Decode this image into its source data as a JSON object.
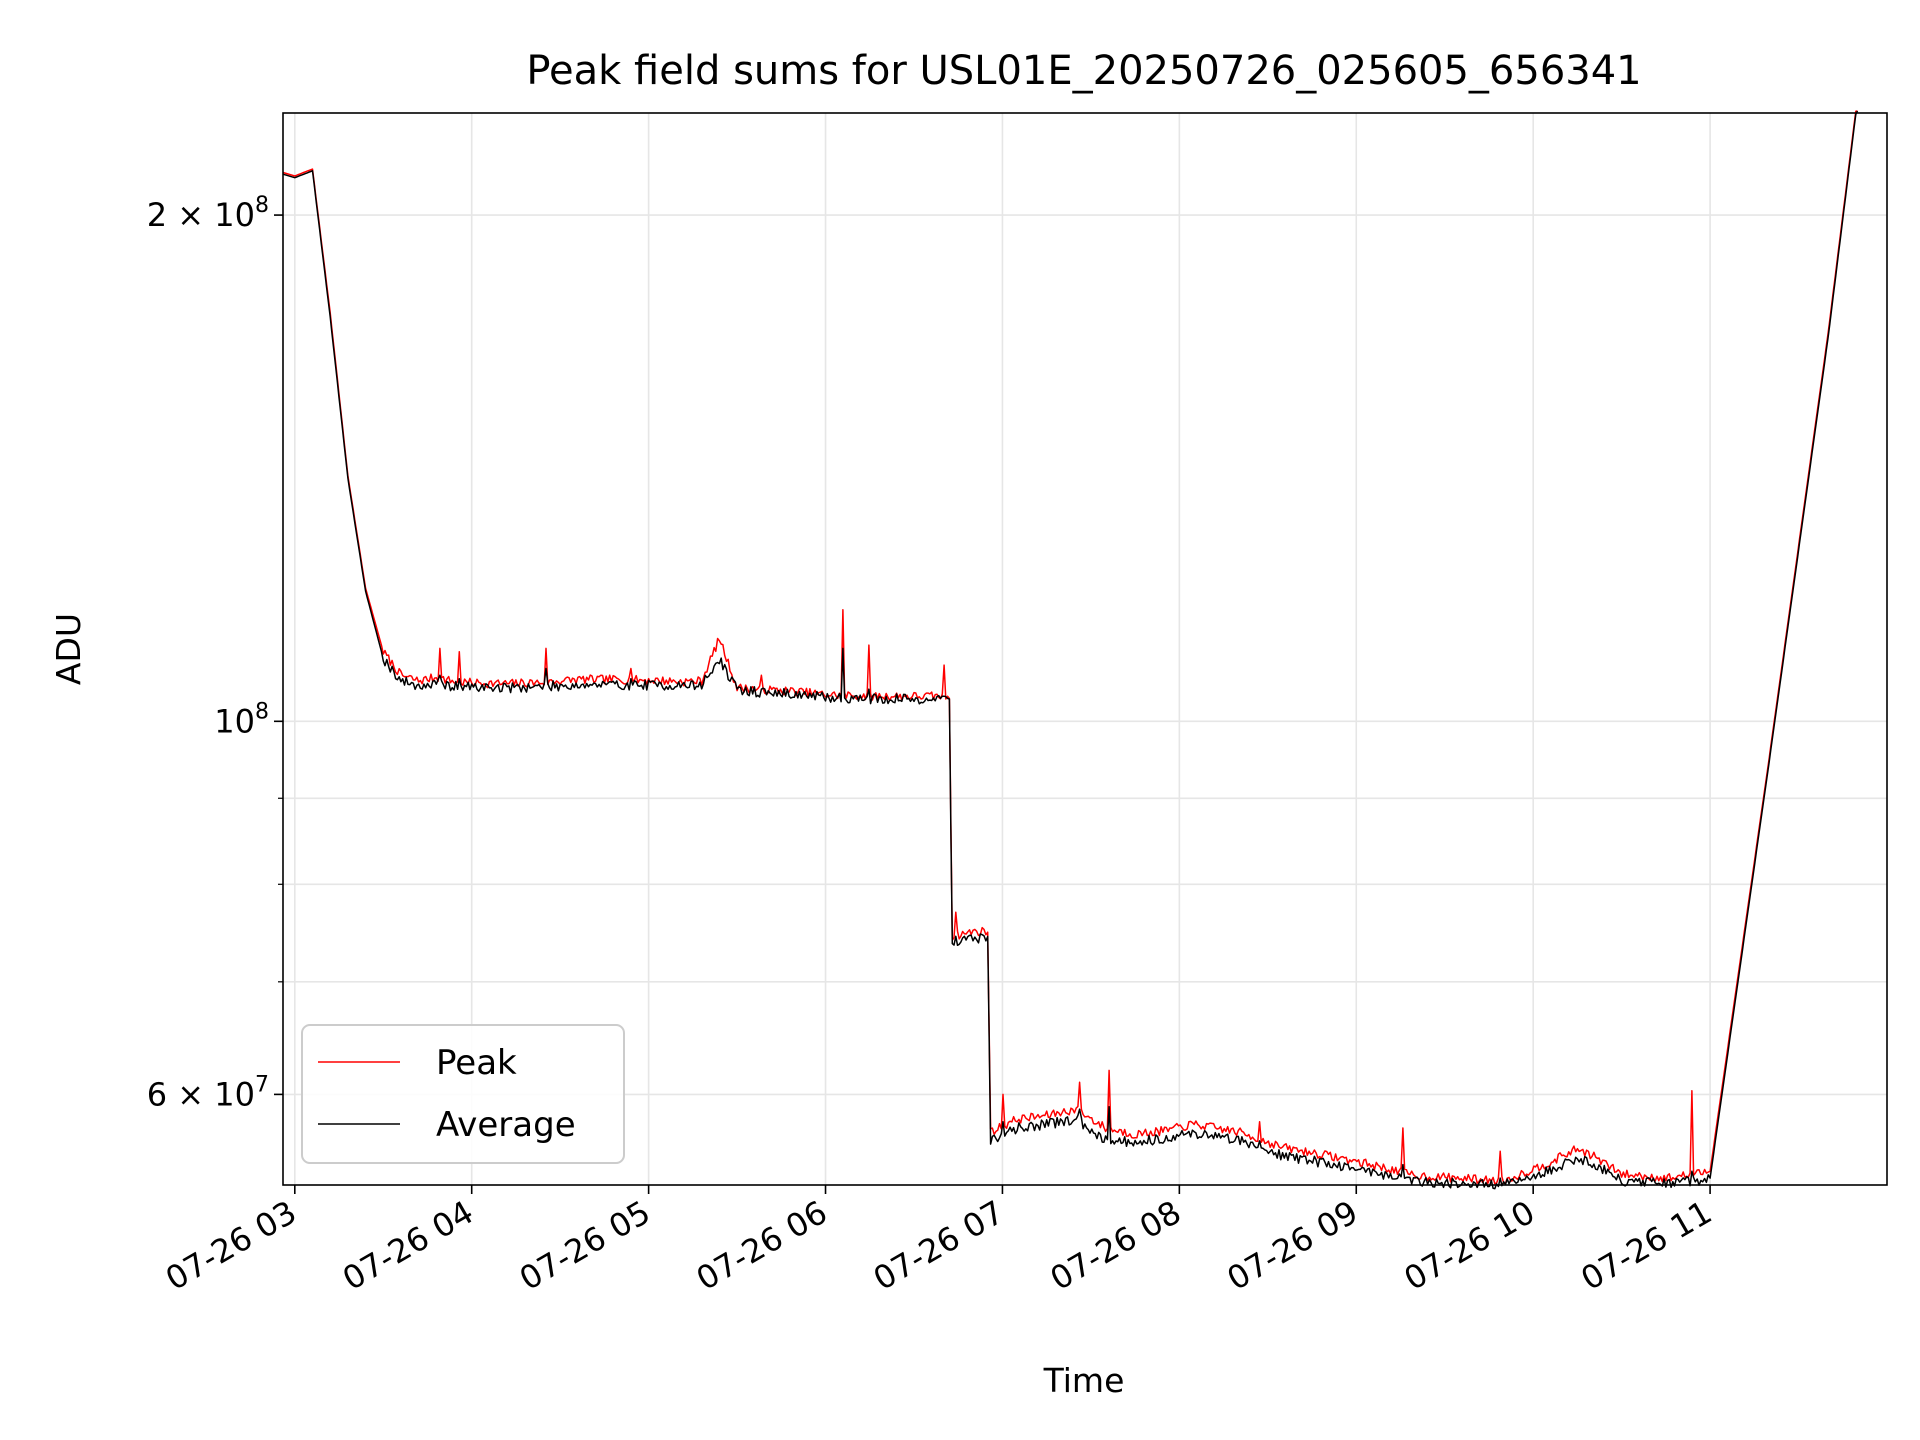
{
  "chart_data": {
    "type": "line",
    "title": "Peak field sums for USL01E_20250726_025605_656341",
    "xlabel": "Time",
    "ylabel": "ADU",
    "y_scale": "log",
    "xlim": [
      "2025-07-26 02:56",
      "2025-07-26 12:00"
    ],
    "ylim": [
      53000000,
      230000000
    ],
    "grid": true,
    "legend_position": "lower left",
    "x_ticks": [
      {
        "value": "2025-07-26 03:00",
        "label": "07-26 03"
      },
      {
        "value": "2025-07-26 04:00",
        "label": "07-26 04"
      },
      {
        "value": "2025-07-26 05:00",
        "label": "07-26 05"
      },
      {
        "value": "2025-07-26 06:00",
        "label": "07-26 06"
      },
      {
        "value": "2025-07-26 07:00",
        "label": "07-26 07"
      },
      {
        "value": "2025-07-26 08:00",
        "label": "07-26 08"
      },
      {
        "value": "2025-07-26 09:00",
        "label": "07-26 09"
      },
      {
        "value": "2025-07-26 10:00",
        "label": "07-26 10"
      },
      {
        "value": "2025-07-26 11:00",
        "label": "07-26 11"
      }
    ],
    "y_ticks": [
      {
        "value": 60000000,
        "base": "6 × 10",
        "exp": "7"
      },
      {
        "value": 100000000,
        "base": "10",
        "exp": "8"
      },
      {
        "value": 200000000,
        "base": "2 × 10",
        "exp": "8"
      }
    ],
    "y_minor_ticks": [
      70000000,
      80000000,
      90000000
    ],
    "series": [
      {
        "name": "Peak",
        "color": "#ff0000",
        "points": [
          [
            "02:56",
            212000000
          ],
          [
            "03:00",
            211000000
          ],
          [
            "03:06",
            213000000
          ],
          [
            "03:12",
            175000000
          ],
          [
            "03:18",
            140000000
          ],
          [
            "03:24",
            120000000
          ],
          [
            "03:30",
            110000000
          ],
          [
            "03:36",
            106500000
          ],
          [
            "03:42",
            105700000
          ],
          [
            "03:48",
            106200000
          ],
          [
            "03:54",
            105600000
          ],
          [
            "04:00",
            105400000
          ],
          [
            "04:12",
            105300000
          ],
          [
            "04:24",
            105500000
          ],
          [
            "04:36",
            105900000
          ],
          [
            "04:48",
            105900000
          ],
          [
            "05:00",
            105800000
          ],
          [
            "05:12",
            105600000
          ],
          [
            "05:18",
            105700000
          ],
          [
            "05:24",
            112000000
          ],
          [
            "05:30",
            104700000
          ],
          [
            "05:40",
            104400000
          ],
          [
            "05:50",
            104200000
          ],
          [
            "06:00",
            103700000
          ],
          [
            "06:10",
            103600000
          ],
          [
            "06:20",
            103500000
          ],
          [
            "06:30",
            103500000
          ],
          [
            "06:42",
            103500000
          ],
          [
            "06:43",
            74500000
          ],
          [
            "06:50",
            75000000
          ],
          [
            "06:55",
            75000000
          ],
          [
            "06:56",
            57000000
          ],
          [
            "07:05",
            58000000
          ],
          [
            "07:15",
            58300000
          ],
          [
            "07:25",
            58800000
          ],
          [
            "07:35",
            57300000
          ],
          [
            "07:45",
            56800000
          ],
          [
            "07:55",
            57100000
          ],
          [
            "08:05",
            57600000
          ],
          [
            "08:20",
            57000000
          ],
          [
            "08:35",
            55800000
          ],
          [
            "08:50",
            55200000
          ],
          [
            "09:05",
            54500000
          ],
          [
            "09:20",
            53700000
          ],
          [
            "09:35",
            53500000
          ],
          [
            "09:50",
            53300000
          ],
          [
            "10:05",
            54600000
          ],
          [
            "10:15",
            55700000
          ],
          [
            "10:20",
            55200000
          ],
          [
            "10:30",
            53800000
          ],
          [
            "10:45",
            53500000
          ],
          [
            "10:55",
            53800000
          ],
          [
            "11:00",
            54000000
          ],
          [
            "11:20",
            95000000
          ],
          [
            "11:40",
            170000000
          ],
          [
            "11:50",
            235000000
          ]
        ]
      },
      {
        "name": "Average",
        "color": "#000000",
        "points": [
          [
            "02:56",
            211500000
          ],
          [
            "03:00",
            210500000
          ],
          [
            "03:06",
            212500000
          ],
          [
            "03:12",
            174000000
          ],
          [
            "03:18",
            139500000
          ],
          [
            "03:24",
            119500000
          ],
          [
            "03:30",
            109000000
          ],
          [
            "03:36",
            105700000
          ],
          [
            "03:42",
            105000000
          ],
          [
            "03:48",
            105200000
          ],
          [
            "03:54",
            104900000
          ],
          [
            "04:00",
            104800000
          ],
          [
            "04:12",
            104700000
          ],
          [
            "04:24",
            104900000
          ],
          [
            "04:36",
            105100000
          ],
          [
            "04:48",
            105100000
          ],
          [
            "05:00",
            105100000
          ],
          [
            "05:12",
            105000000
          ],
          [
            "05:18",
            105100000
          ],
          [
            "05:24",
            108800000
          ],
          [
            "05:30",
            104400000
          ],
          [
            "05:40",
            104000000
          ],
          [
            "05:50",
            103800000
          ],
          [
            "06:00",
            103300000
          ],
          [
            "06:10",
            103200000
          ],
          [
            "06:20",
            103100000
          ],
          [
            "06:30",
            103100000
          ],
          [
            "06:42",
            103100000
          ],
          [
            "06:43",
            73800000
          ],
          [
            "06:50",
            74300000
          ],
          [
            "06:55",
            74400000
          ],
          [
            "06:56",
            56300000
          ],
          [
            "07:05",
            57300000
          ],
          [
            "07:15",
            57600000
          ],
          [
            "07:25",
            58000000
          ],
          [
            "07:35",
            56400000
          ],
          [
            "07:45",
            56200000
          ],
          [
            "07:55",
            56500000
          ],
          [
            "08:05",
            56900000
          ],
          [
            "08:20",
            56400000
          ],
          [
            "08:35",
            55200000
          ],
          [
            "08:50",
            54600000
          ],
          [
            "09:05",
            54000000
          ],
          [
            "09:20",
            53300000
          ],
          [
            "09:35",
            53100000
          ],
          [
            "09:50",
            53000000
          ],
          [
            "10:05",
            54000000
          ],
          [
            "10:15",
            55000000
          ],
          [
            "10:20",
            54600000
          ],
          [
            "10:30",
            53300000
          ],
          [
            "10:45",
            53100000
          ],
          [
            "10:55",
            53300000
          ],
          [
            "11:00",
            53500000
          ],
          [
            "11:20",
            94500000
          ],
          [
            "11:40",
            169000000
          ],
          [
            "11:50",
            234000000
          ]
        ]
      }
    ],
    "spikes": [
      {
        "time": "03:49",
        "peak": 110500000,
        "avg": 106500000
      },
      {
        "time": "03:56",
        "peak": 110000000,
        "avg": 106000000
      },
      {
        "time": "04:25",
        "peak": 110500000,
        "avg": 107500000
      },
      {
        "time": "04:54",
        "peak": 107500000,
        "avg": 106000000
      },
      {
        "time": "05:38",
        "peak": 106500000,
        "avg": 104500000
      },
      {
        "time": "06:06",
        "peak": 116500000,
        "avg": 110500000
      },
      {
        "time": "06:15",
        "peak": 111000000,
        "avg": 104500000
      },
      {
        "time": "06:40",
        "peak": 108000000,
        "avg": 103500000
      },
      {
        "time": "06:44",
        "peak": 77000000,
        "avg": 74500000
      },
      {
        "time": "07:00",
        "peak": 60000000,
        "avg": 57800000
      },
      {
        "time": "07:26",
        "peak": 61000000,
        "avg": 58800000
      },
      {
        "time": "07:36",
        "peak": 62000000,
        "avg": 59000000
      },
      {
        "time": "08:27",
        "peak": 57800000,
        "avg": 56300000
      },
      {
        "time": "09:16",
        "peak": 57300000,
        "avg": 54500000
      },
      {
        "time": "09:49",
        "peak": 55500000,
        "avg": 53500000
      },
      {
        "time": "10:54",
        "peak": 60300000,
        "avg": 54000000
      }
    ],
    "legend": [
      {
        "label": "Peak",
        "color": "#ff0000"
      },
      {
        "label": "Average",
        "color": "#000000"
      }
    ]
  }
}
